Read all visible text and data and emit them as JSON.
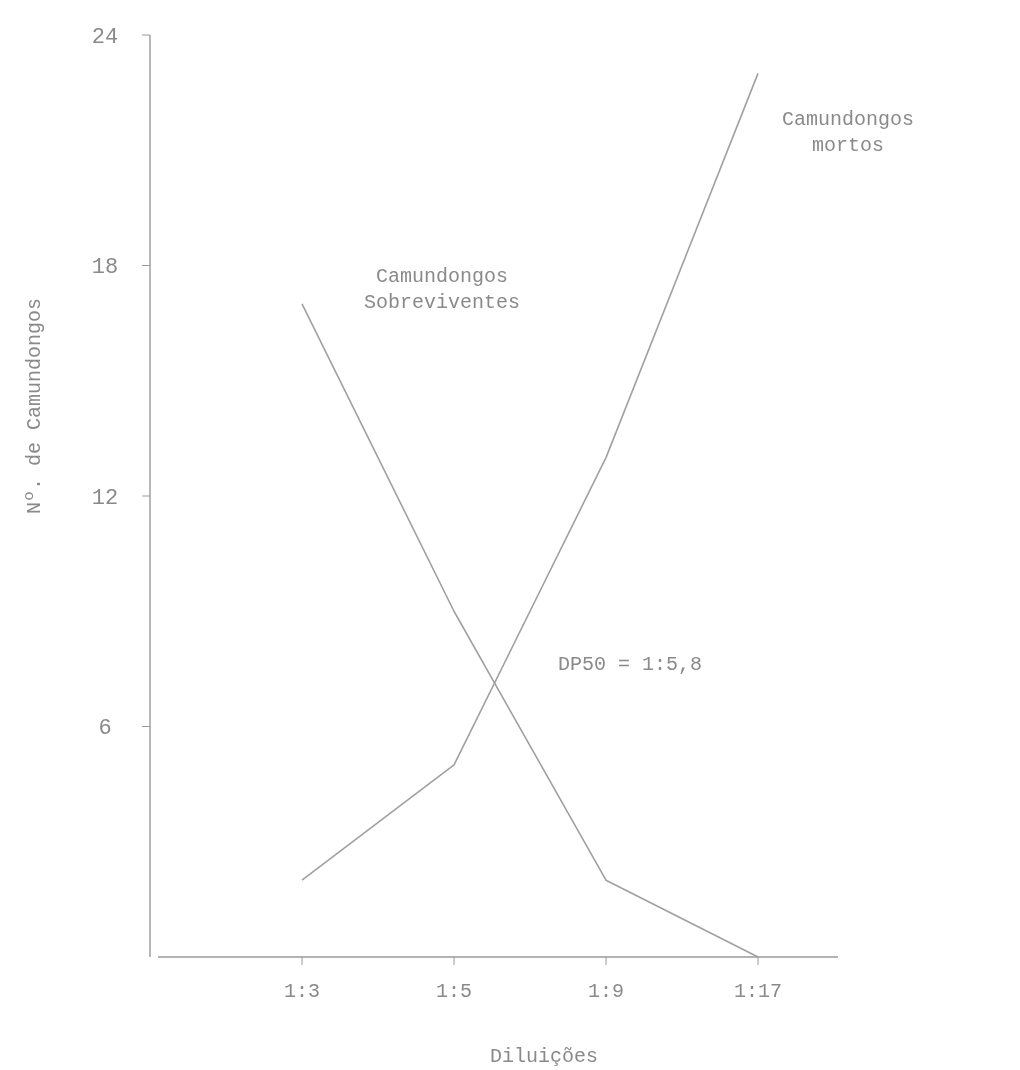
{
  "chart_data": {
    "type": "line",
    "xlabel": "Diluições",
    "ylabel": "Nº. de Camundongos",
    "categories": [
      "1:3",
      "1:5",
      "1:9",
      "1:17"
    ],
    "ylim": [
      0,
      24
    ],
    "yticks": [
      6,
      12,
      18,
      24
    ],
    "marker": "none",
    "line_style": "solid",
    "series": [
      {
        "name": "Camundongos mortos",
        "color": "#a0a0a0",
        "values": [
          2,
          5,
          13,
          23
        ]
      },
      {
        "name": "Camundongos Sobreviventes",
        "color": "#a0a0a0",
        "values": [
          17,
          9,
          2,
          0
        ]
      }
    ],
    "annotations": [
      "DP50 = 1:5,8"
    ]
  }
}
